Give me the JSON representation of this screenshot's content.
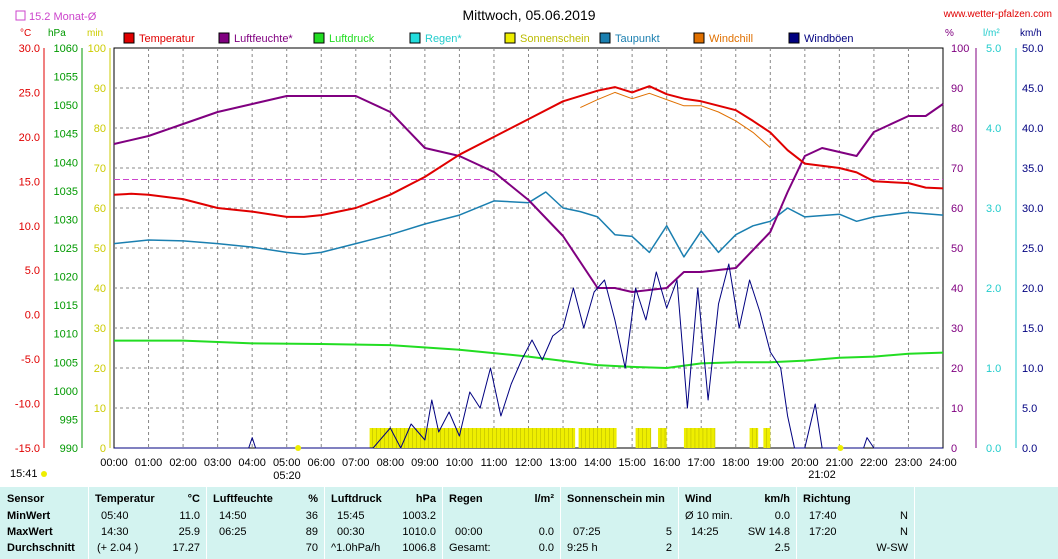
{
  "chart_data": {
    "type": "line",
    "title": "Mittwoch, 05.06.2019",
    "source": "www.wetter-pfalzen.com",
    "monthly_avg_label": "15.2 Monat-Ø",
    "monthly_avg_temp": 15.2,
    "marker_left": "15:41",
    "marker_bottom_left": "05:20",
    "marker_bottom_right": "21:02",
    "x_ticks": [
      "00:00",
      "01:00",
      "02:00",
      "03:00",
      "04:00",
      "05:00",
      "06:00",
      "07:00",
      "08:00",
      "09:00",
      "10:00",
      "11:00",
      "12:00",
      "13:00",
      "14:00",
      "15:00",
      "16:00",
      "17:00",
      "18:00",
      "19:00",
      "20:00",
      "21:00",
      "22:00",
      "23:00",
      "24:00"
    ],
    "axes": {
      "temperature": {
        "unit": "°C",
        "min": -15,
        "max": 30,
        "ticks": [
          "30.0",
          "25.0",
          "20.0",
          "15.0",
          "10.0",
          "5.0",
          "0.0",
          "-5.0",
          "-10.0",
          "-15.0"
        ]
      },
      "pressure": {
        "unit": "hPa",
        "min": 990,
        "max": 1060,
        "ticks": [
          "1060",
          "1055",
          "1050",
          "1045",
          "1040",
          "1035",
          "1030",
          "1025",
          "1020",
          "1015",
          "1010",
          "1005",
          "1000",
          "995",
          "990"
        ]
      },
      "sunshine": {
        "unit": "min",
        "min": 0,
        "max": 100,
        "ticks": [
          "100",
          "90",
          "80",
          "70",
          "60",
          "50",
          "40",
          "30",
          "20",
          "10",
          "0"
        ]
      },
      "humidity": {
        "unit": "%",
        "min": 0,
        "max": 100,
        "ticks": [
          "100",
          "90",
          "80",
          "70",
          "60",
          "50",
          "40",
          "30",
          "20",
          "10",
          "0"
        ]
      },
      "rain": {
        "unit": "l/m²",
        "min": 0,
        "max": 5,
        "ticks": [
          "5.0",
          "4.0",
          "3.0",
          "2.0",
          "1.0",
          "0.0"
        ]
      },
      "wind": {
        "unit": "km/h",
        "min": 0,
        "max": 50,
        "ticks": [
          "50.0",
          "45.0",
          "40.0",
          "35.0",
          "30.0",
          "25.0",
          "20.0",
          "15.0",
          "10.0",
          "5.0",
          "0.0"
        ]
      }
    },
    "legend": [
      {
        "name": "Temperatur",
        "color": "#e00000"
      },
      {
        "name": "Luftfeuchte*",
        "color": "#800080"
      },
      {
        "name": "Luftdruck",
        "color": "#22dd22"
      },
      {
        "name": "Regen*",
        "color": "#22dddd"
      },
      {
        "name": "Sonnenschein",
        "color": "#eeee00"
      },
      {
        "name": "Taupunkt",
        "color": "#1a7fb0"
      },
      {
        "name": "Windchill",
        "color": "#e07000"
      },
      {
        "name": "Windböen",
        "color": "#000080"
      }
    ],
    "colors": {
      "temperature": "#e00000",
      "humidity": "#800080",
      "pressure": "#22dd22",
      "dewpoint": "#1a7fb0",
      "windchill": "#e07000",
      "gusts": "#000080",
      "sunshine": "#eeee00",
      "avg_line": "#cc44cc",
      "left_axis": "#e00000",
      "pressure_axis": "#009900",
      "sun_axis": "#cccc00",
      "hum_axis": "#800080",
      "rain_axis": "#22cccc",
      "wind_axis": "#000080"
    },
    "series": [
      {
        "name": "Temperatur",
        "key": "temperature",
        "x": [
          0,
          0.5,
          1,
          2,
          3,
          4,
          5,
          5.5,
          6,
          7,
          8,
          9,
          10,
          11,
          12,
          13,
          14,
          14.5,
          15,
          15.5,
          16,
          16.5,
          17,
          18,
          18.5,
          19,
          19.5,
          20,
          21,
          21.5,
          22,
          23,
          23.5,
          24
        ],
        "values": [
          13.5,
          13.6,
          13.5,
          13.0,
          12.0,
          11.6,
          11.0,
          11.0,
          11.2,
          12.0,
          13.5,
          15.5,
          18.0,
          20.0,
          22.0,
          24.0,
          25.2,
          25.6,
          25.0,
          25.7,
          24.8,
          24.3,
          24.0,
          23.0,
          21.8,
          20.5,
          18.5,
          17.0,
          16.5,
          16.0,
          15.0,
          14.8,
          14.3,
          14.2
        ]
      },
      {
        "name": "Luftfeuchte*",
        "key": "humidity",
        "x": [
          0,
          1,
          2,
          3,
          4,
          5,
          6,
          7,
          8,
          9,
          10,
          11,
          12,
          13,
          14,
          14.5,
          15,
          16,
          16.5,
          17,
          18,
          19,
          19.5,
          20,
          20.5,
          21,
          21.5,
          22,
          23,
          23.5,
          24
        ],
        "values": [
          76,
          78,
          81,
          84,
          86,
          88,
          88,
          88,
          84,
          75,
          73,
          69,
          62,
          53,
          40,
          40,
          39,
          40,
          44,
          44,
          45,
          54,
          64,
          73,
          75,
          74,
          73,
          79,
          83,
          83,
          86
        ]
      },
      {
        "name": "Luftdruck",
        "key": "pressure",
        "x": [
          0,
          2,
          4,
          6,
          8,
          10,
          12,
          14,
          15,
          16,
          17,
          18,
          19,
          20,
          21,
          22,
          23,
          24
        ],
        "values": [
          1008.8,
          1008.8,
          1008.3,
          1008.2,
          1008.0,
          1007.2,
          1006.0,
          1004.5,
          1004.2,
          1004.0,
          1004.8,
          1005.0,
          1005.0,
          1005.3,
          1005.8,
          1006.0,
          1006.5,
          1006.7
        ]
      },
      {
        "name": "Taupunkt",
        "key": "dewpoint",
        "x": [
          0,
          1,
          2,
          3,
          4,
          5,
          5.5,
          6,
          7,
          8,
          9,
          10,
          11,
          12,
          12.5,
          13,
          13.5,
          14,
          14.5,
          15,
          15.5,
          16,
          16.5,
          17,
          17.5,
          18,
          18.5,
          19,
          19.5,
          20,
          21,
          21.5,
          22,
          23,
          24
        ],
        "values": [
          8.0,
          8.4,
          8.3,
          8.0,
          7.6,
          7.0,
          6.8,
          7.0,
          8.0,
          9.0,
          10.2,
          11.2,
          12.8,
          12.6,
          13.8,
          12.0,
          11.6,
          11.0,
          9.0,
          8.8,
          7.0,
          10.0,
          6.5,
          9.4,
          7.0,
          9.0,
          10.0,
          10.5,
          12.0,
          11.0,
          11.3,
          10.5,
          11.0,
          11.5,
          11.2
        ]
      },
      {
        "name": "Windchill",
        "key": "windchill",
        "x": [
          13.5,
          14,
          14.5,
          15,
          15.5,
          16,
          16.5,
          17,
          17.5,
          18,
          18.5,
          19
        ],
        "values": [
          23.3,
          24.2,
          25.0,
          24.3,
          24.9,
          24.2,
          23.5,
          23.5,
          22.8,
          21.8,
          20.5,
          18.8
        ]
      },
      {
        "name": "Windböen",
        "key": "gusts",
        "x": [
          0,
          3.9,
          4.0,
          4.1,
          7.5,
          8.0,
          8.3,
          8.6,
          9.0,
          9.2,
          9.4,
          9.7,
          10.0,
          10.3,
          10.6,
          10.9,
          11.2,
          11.5,
          11.8,
          12.1,
          12.4,
          12.7,
          13.0,
          13.3,
          13.6,
          13.9,
          14.2,
          14.5,
          14.8,
          15.1,
          15.4,
          15.7,
          16.0,
          16.3,
          16.6,
          16.9,
          17.2,
          17.5,
          17.8,
          18.1,
          18.4,
          18.7,
          19.0,
          19.3,
          19.5,
          19.7,
          20.0,
          20.3,
          20.5,
          21.5,
          21.7,
          21.8,
          22.0,
          22.7,
          22.8,
          22.9,
          24
        ],
        "values": [
          0,
          0,
          1.3,
          0,
          0,
          2.5,
          0,
          3.0,
          1.0,
          6.0,
          2.0,
          4.5,
          1.5,
          7.0,
          5.0,
          10.0,
          4.0,
          8.0,
          11.0,
          13.5,
          11.0,
          14.0,
          15.0,
          20.0,
          15.0,
          19.5,
          21.0,
          16.0,
          10.0,
          20.0,
          16.0,
          22.0,
          17.5,
          21.0,
          5.0,
          20.0,
          6.0,
          18.0,
          23.0,
          15.0,
          21.0,
          17.0,
          12.0,
          10.0,
          4.0,
          0,
          0,
          5.5,
          0,
          0,
          0,
          1.3,
          0,
          0,
          0,
          0,
          0
        ]
      }
    ],
    "sunshine_intervals": [
      [
        7.4,
        13.35
      ],
      [
        13.45,
        14.55
      ],
      [
        15.1,
        15.55
      ],
      [
        15.75,
        16.0
      ],
      [
        16.5,
        17.4
      ],
      [
        18.4,
        18.65
      ],
      [
        18.8,
        19.0
      ]
    ]
  },
  "table": {
    "headers": {
      "sensor": "Sensor",
      "temperature": "Temperatur",
      "temperature_unit": "°C",
      "humidity": "Luftfeuchte",
      "humidity_unit": "%",
      "pressure": "Luftdruck",
      "pressure_unit": "hPa",
      "rain": "Regen",
      "rain_unit": "l/m²",
      "sunshine": "Sonnenschein min",
      "wind": "Wind",
      "wind_unit": "km/h",
      "direction": "Richtung"
    },
    "rows": [
      {
        "label": "MinWert",
        "temp_time": "05:40",
        "temp_value": "11.0",
        "hum_time": "14:50",
        "hum_value": "36",
        "press_time": "15:45",
        "press_value": "1003.2",
        "rain_time": "",
        "rain_value": "",
        "sun_time": "",
        "sun_value": "",
        "wind_time": "Ø 10 min.",
        "wind_value": "0.0",
        "dir_time": "17:40",
        "dir_value": "N"
      },
      {
        "label": "MaxWert",
        "temp_time": "14:30",
        "temp_value": "25.9",
        "hum_time": "06:25",
        "hum_value": "89",
        "press_time": "00:30",
        "press_value": "1010.0",
        "rain_time": "00:00",
        "rain_value": "0.0",
        "sun_time": "07:25",
        "sun_value": "5",
        "wind_time": "14:25",
        "wind_value": "SW 14.8",
        "dir_time": "17:20",
        "dir_value": "N"
      },
      {
        "label": "Durchschnitt",
        "temp_time": "(+ 2.04 )",
        "temp_value": "17.27",
        "hum_time": "",
        "hum_value": "70",
        "press_time": "^1.0hPa/h",
        "press_value": "1006.8",
        "rain_time": "Gesamt:",
        "rain_value": "0.0",
        "sun_time": "9:25 h",
        "sun_value": "2",
        "wind_time": "",
        "wind_value": "2.5",
        "dir_time": "",
        "dir_value": "W-SW"
      }
    ]
  }
}
